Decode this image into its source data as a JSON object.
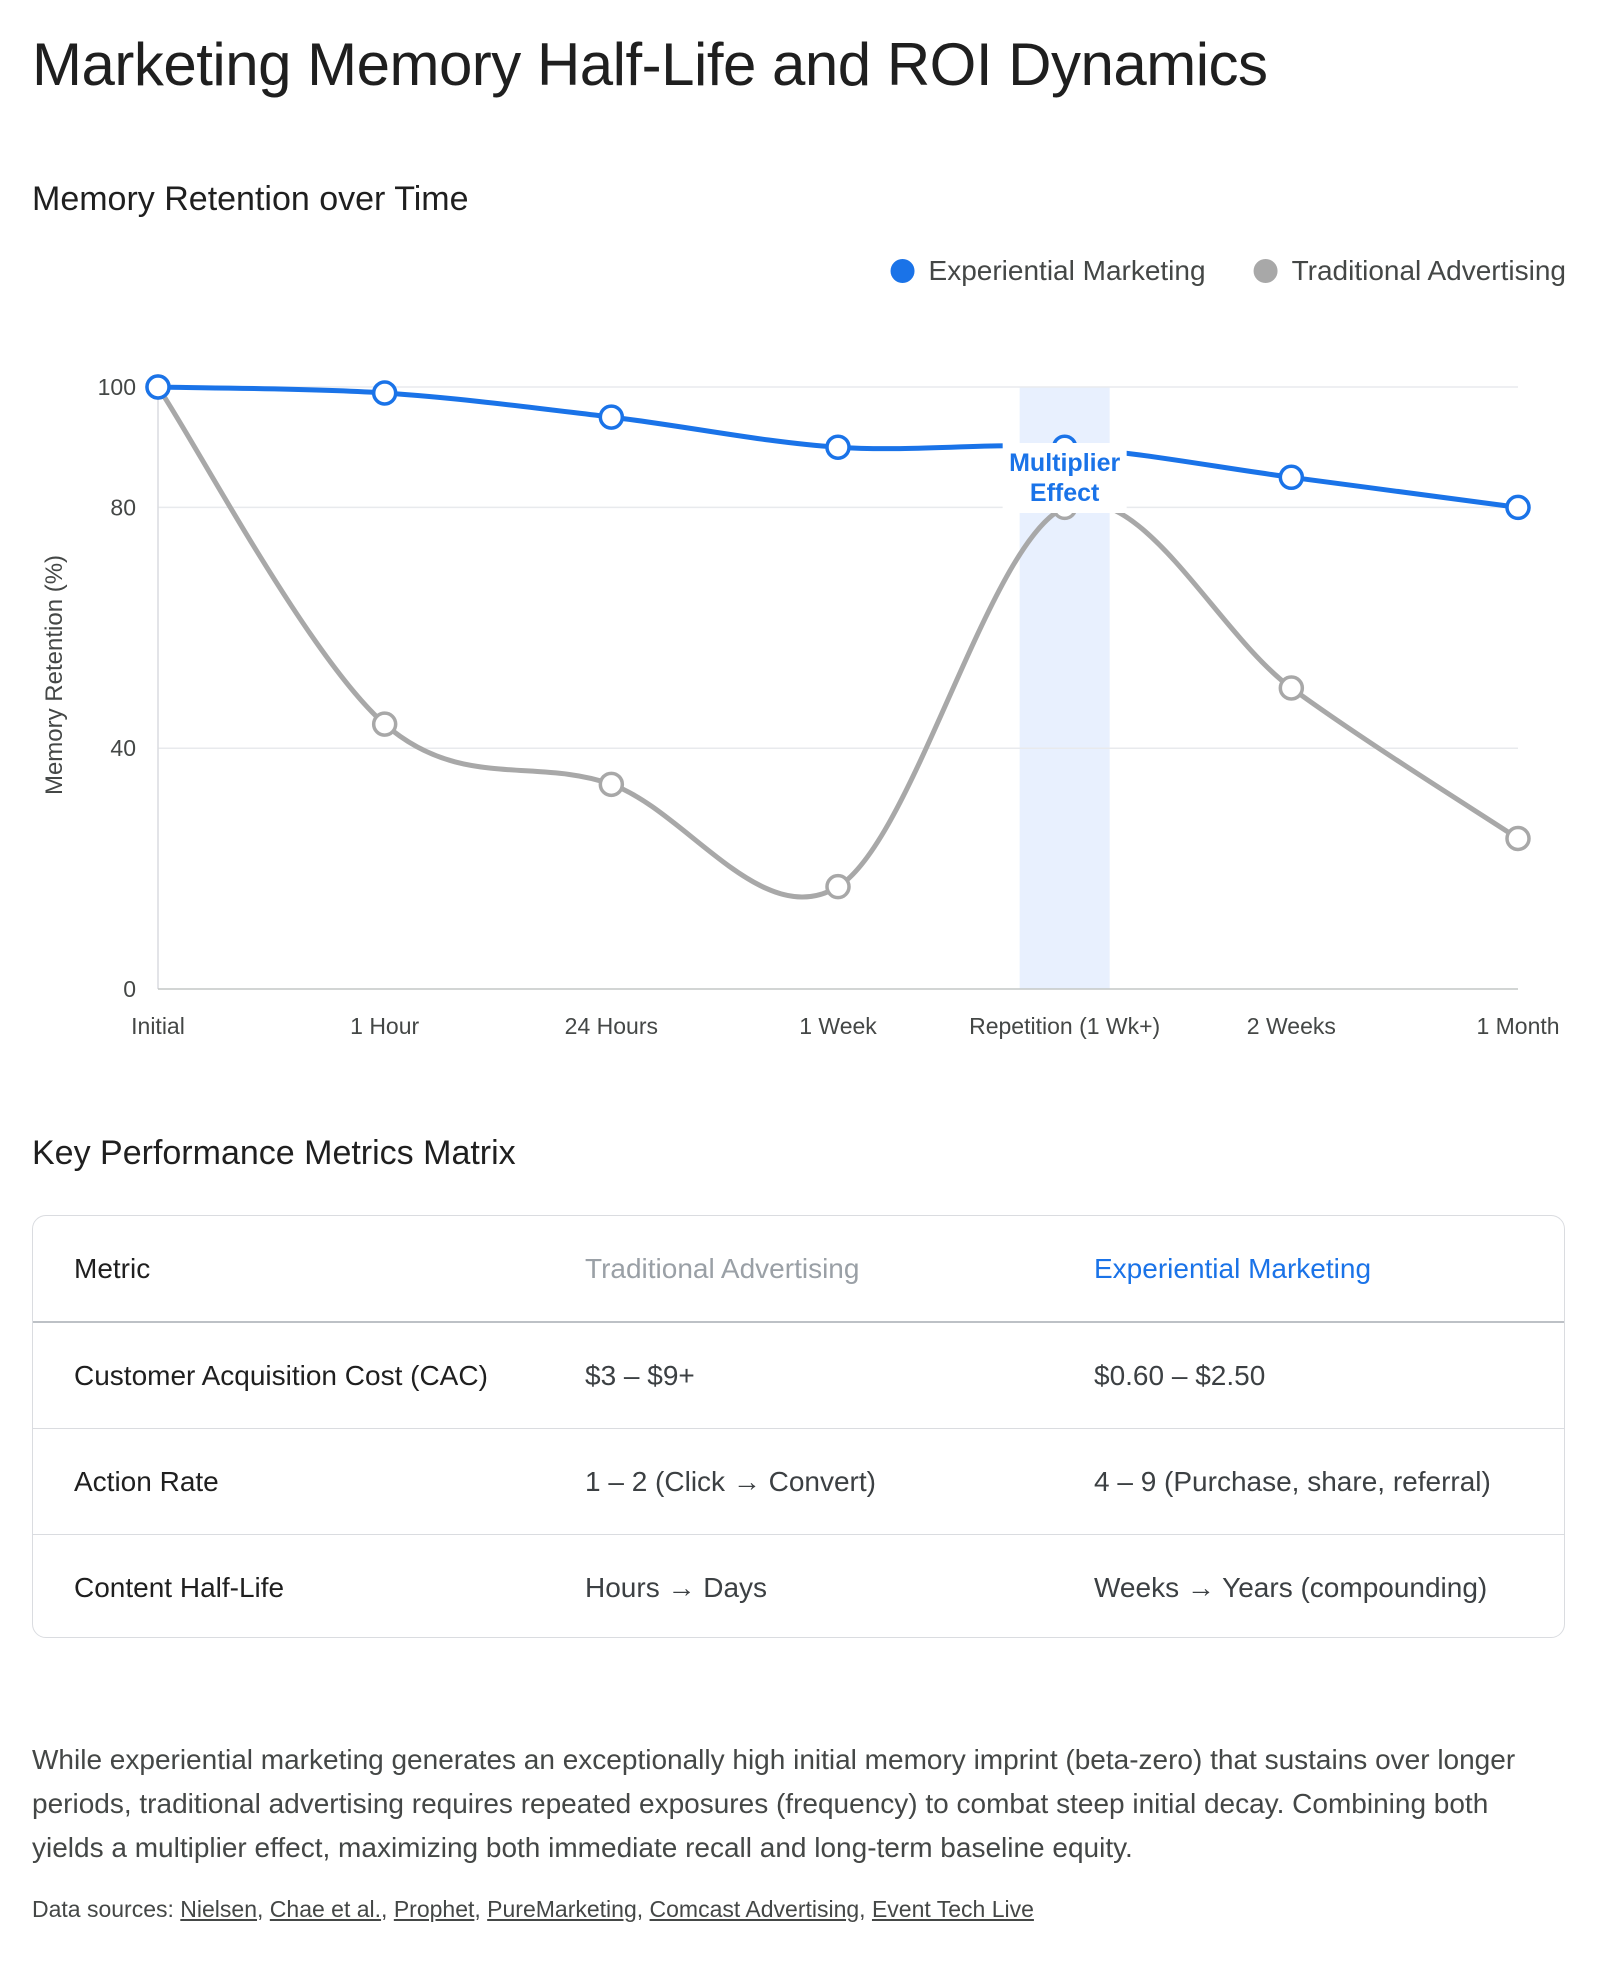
{
  "page": {
    "title": "Marketing Memory Half-Life and ROI Dynamics"
  },
  "chart_section": {
    "title": "Memory Retention over Time"
  },
  "chart_data": {
    "type": "line",
    "categories": [
      "Initial",
      "1 Hour",
      "24 Hours",
      "1 Week",
      "Repetition (1 Wk+)",
      "2 Weeks",
      "1 Month"
    ],
    "series": [
      {
        "name": "Experiential Marketing",
        "color": "#1a73e8",
        "values": [
          100,
          99,
          95,
          90,
          90,
          85,
          80
        ]
      },
      {
        "name": "Traditional Advertising",
        "color": "#a8a8a8",
        "values": [
          100,
          44,
          34,
          17,
          80,
          50,
          25
        ]
      }
    ],
    "ylabel": "Memory Retention (%)",
    "yticks": [
      0,
      40,
      80,
      100
    ],
    "ylim": [
      0,
      100
    ],
    "grid": true,
    "legend": "top-right",
    "annotation": {
      "category": "Repetition (1 Wk+)",
      "lines": [
        "Multiplier",
        "Effect"
      ],
      "color": "#1a73e8",
      "band_color": "#e8f0fe"
    }
  },
  "matrix": {
    "title": "Key Performance Metrics Matrix",
    "headers": [
      "Metric",
      "Traditional Advertising",
      "Experiential Marketing"
    ],
    "rows": [
      [
        "Customer Acquisition Cost (CAC)",
        "$3 – $9+",
        "$0.60 – $2.50"
      ],
      [
        "Action Rate",
        "1 – 2 (Click → Convert)",
        "4 – 9 (Purchase, share, referral)"
      ],
      [
        "Content Half-Life",
        "Hours → Days",
        "Weeks → Years (compounding)"
      ]
    ]
  },
  "summary": "While experiential marketing generates an exceptionally high initial memory imprint (beta-zero) that sustains over longer periods, traditional advertising requires repeated exposures (frequency) to combat steep initial decay. Combining both yields a multiplier effect, maximizing both immediate recall and long-term baseline equity.",
  "sources": {
    "label": "Data sources:",
    "links": [
      "Nielsen",
      "Chae et al.",
      "Prophet",
      "PureMarketing",
      "Comcast Advertising",
      "Event Tech Live"
    ]
  }
}
